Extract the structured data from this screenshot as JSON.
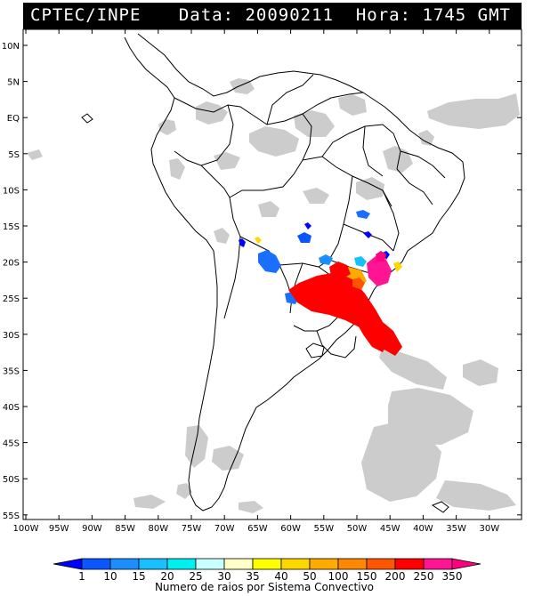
{
  "header": {
    "left": "CPTEC/INPE",
    "right": "Data: 20090211  Hora: 1745 GMT"
  },
  "map": {
    "lat_labels": [
      "10N",
      "5N",
      "EQ",
      "5S",
      "10S",
      "15S",
      "20S",
      "25S",
      "30S",
      "35S",
      "40S",
      "45S",
      "50S",
      "55S"
    ],
    "lon_labels": [
      "100W",
      "95W",
      "90W",
      "85W",
      "80W",
      "75W",
      "70W",
      "65W",
      "60W",
      "55W",
      "50W",
      "45W",
      "40W",
      "35W",
      "30W"
    ],
    "colors": {
      "cloud": "#c8c8c8",
      "land_border": "#000000"
    }
  },
  "colorbar": {
    "values": [
      "1",
      "10",
      "15",
      "20",
      "25",
      "30",
      "35",
      "40",
      "50",
      "100",
      "150",
      "200",
      "250",
      "350"
    ],
    "colors": [
      "#0000ff",
      "#0b57ff",
      "#1b8fff",
      "#19c0ff",
      "#00f0f0",
      "#c8ffff",
      "#ffffc8",
      "#ffff00",
      "#ffd700",
      "#ffaa00",
      "#ff8800",
      "#ff5500",
      "#ff0000",
      "#ff1493",
      "#ff007f"
    ],
    "title": "Numero de raios por Sistema Convectivo"
  }
}
